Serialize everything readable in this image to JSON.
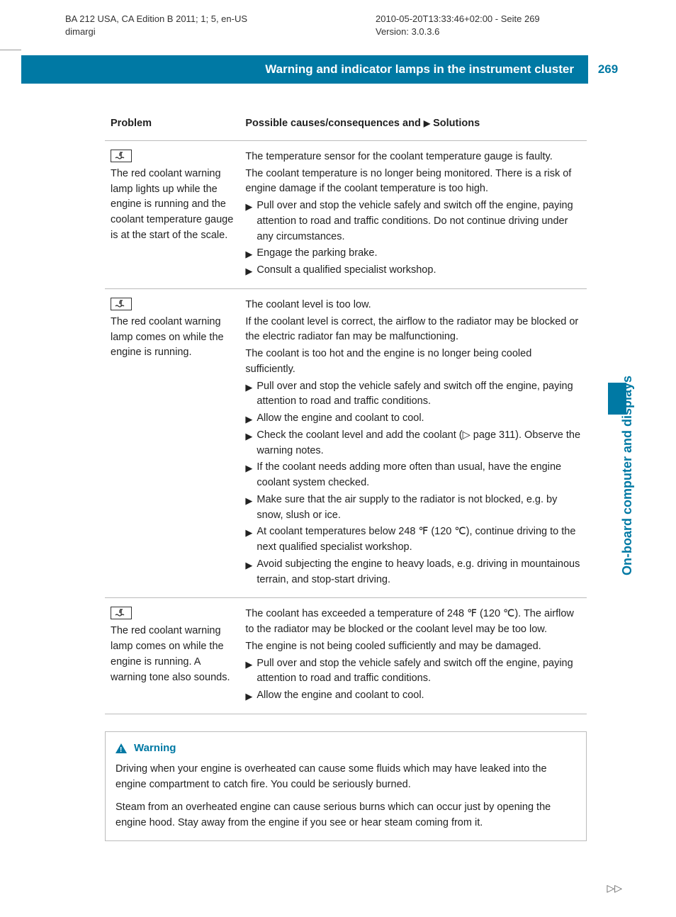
{
  "meta": {
    "left_line1": "BA 212 USA, CA Edition B 2011; 1; 5, en-US",
    "left_line2": "dimargi",
    "right_line1": "2010-05-20T13:33:46+02:00 - Seite 269",
    "right_line2": "Version: 3.0.3.6"
  },
  "header": {
    "title": "Warning and indicator lamps in the instrument cluster",
    "page_number": "269",
    "side_tab": "On-board computer and displays",
    "bar_color": "#0079a4"
  },
  "table": {
    "col1_header": "Problem",
    "col2_header_prefix": "Possible causes/consequences and",
    "col2_header_suffix": "Solutions",
    "rows": [
      {
        "problem": "The red coolant warning lamp lights up while the engine is running and the coolant temperature gauge is at the start of the scale.",
        "causes": [
          "The temperature sensor for the coolant temperature gauge is faulty.",
          "The coolant temperature is no longer being monitored. There is a risk of engine damage if the coolant temperature is too high."
        ],
        "solutions": [
          "Pull over and stop the vehicle safely and switch off the engine, paying attention to road and traffic conditions. Do not continue driving under any circumstances.",
          "Engage the parking brake.",
          "Consult a qualified specialist workshop."
        ]
      },
      {
        "problem": "The red coolant warning lamp comes on while the engine is running.",
        "causes": [
          "The coolant level is too low.",
          "If the coolant level is correct, the airflow to the radiator may be blocked or the electric radiator fan may be malfunctioning.",
          "The coolant is too hot and the engine is no longer being cooled sufficiently."
        ],
        "solutions": [
          "Pull over and stop the vehicle safely and switch off the engine, paying attention to road and traffic conditions.",
          "Allow the engine and coolant to cool.",
          "Check the coolant level and add the coolant (▷ page 311). Observe the warning notes.",
          "If the coolant needs adding more often than usual, have the engine coolant system checked.",
          "Make sure that the air supply to the radiator is not blocked, e.g. by snow, slush or ice.",
          "At coolant temperatures below 248 ℉ (120 ℃), continue driving to the next qualified specialist workshop.",
          "Avoid subjecting the engine to heavy loads, e.g. driving in mountainous terrain, and stop-start driving."
        ]
      },
      {
        "problem": "The red coolant warning lamp comes on while the engine is running. A warning tone also sounds.",
        "causes": [
          "The coolant has exceeded a temperature of 248 ℉ (120 ℃). The airflow to the radiator may be blocked or the coolant level may be too low.",
          "The engine is not being cooled sufficiently and may be damaged."
        ],
        "solutions": [
          "Pull over and stop the vehicle safely and switch off the engine, paying attention to road and traffic conditions.",
          "Allow the engine and coolant to cool."
        ]
      }
    ]
  },
  "warning_box": {
    "title": "Warning",
    "p1": "Driving when your engine is overheated can cause some fluids which may have leaked into the engine compartment to catch fire. You could be seriously burned.",
    "p2": "Steam from an overheated engine can cause serious burns which can occur just by opening the engine hood. Stay away from the engine if you see or hear steam coming from it."
  },
  "continue_marker": "▷▷"
}
